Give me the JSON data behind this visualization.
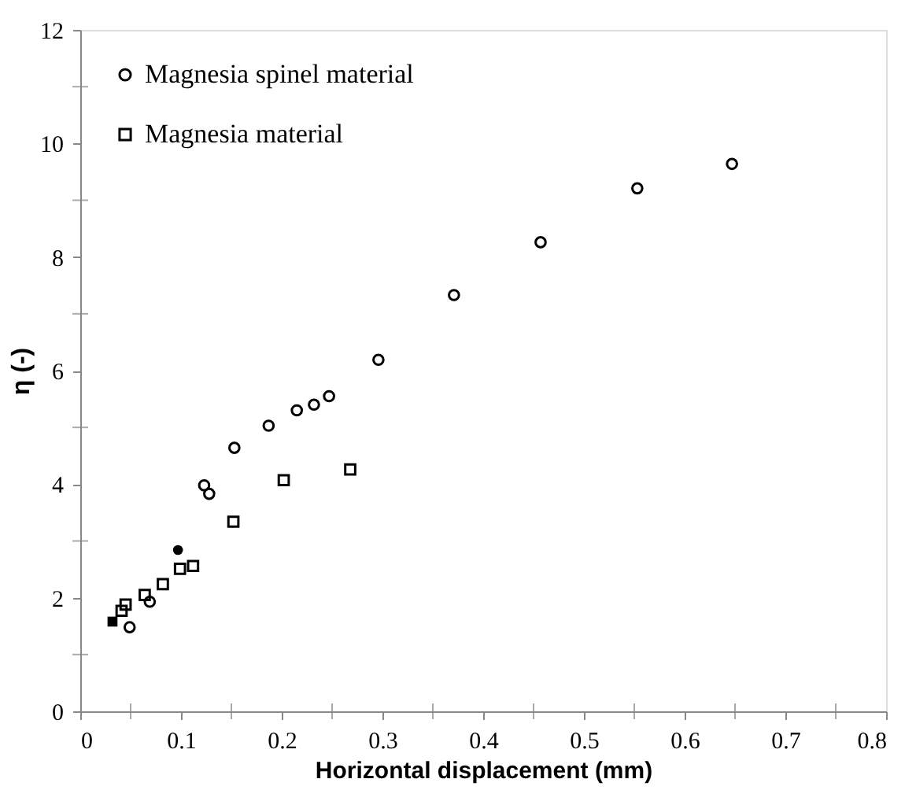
{
  "chart_data": {
    "type": "scatter",
    "xlabel": "Horizontal displacement (mm)",
    "ylabel": "η (-)",
    "xlim": [
      0,
      0.8
    ],
    "xticks": [
      0,
      {
        "value": 0.05,
        "label": null
      },
      0.1,
      {
        "value": 0.15,
        "label": null
      },
      0.2,
      {
        "value": 0.25,
        "label": null
      },
      0.3,
      {
        "value": 0.35,
        "label": null
      },
      0.4,
      {
        "value": 0.45,
        "label": null
      },
      0.5,
      {
        "value": 0.55,
        "label": null
      },
      0.6,
      {
        "value": 0.65,
        "label": null
      },
      0.7,
      {
        "value": 0.75,
        "label": null
      },
      0.8
    ],
    "ylim": [
      0,
      12
    ],
    "yticks": [
      0,
      {
        "value": 1,
        "label": null
      },
      2,
      {
        "value": 3,
        "label": null
      },
      4,
      {
        "value": 5,
        "label": null
      },
      6,
      {
        "value": 7,
        "label": null
      },
      8,
      {
        "value": 9,
        "label": null
      },
      10,
      {
        "value": 11,
        "label": null
      },
      12
    ],
    "grid": false,
    "legend": "top left",
    "series": [
      {
        "name": "Magnesia spinel material",
        "color": "#000000",
        "marker": "circle",
        "x": [
          0.049,
          0.069,
          0.123,
          0.128,
          0.153,
          0.187,
          0.215,
          0.232,
          0.247,
          0.296,
          0.371,
          0.457,
          0.553,
          0.647
        ],
        "values": [
          1.48,
          1.93,
          3.98,
          3.83,
          4.64,
          5.03,
          5.3,
          5.4,
          5.55,
          6.19,
          7.33,
          8.26,
          9.21,
          9.64
        ]
      },
      {
        "name": "Magnesia material",
        "color": "#000000",
        "marker": "square",
        "x": [
          0.041,
          0.045,
          0.064,
          0.082,
          0.099,
          0.112,
          0.152,
          0.202,
          0.268
        ],
        "values": [
          1.77,
          1.88,
          2.05,
          2.24,
          2.51,
          2.56,
          3.34,
          4.07,
          4.26
        ]
      },
      {
        "color": "#000000",
        "marker": "circle",
        "x": [
          0.097
        ],
        "values": [
          2.84
        ]
      },
      {
        "color": "#000000",
        "marker": "square",
        "x": [
          0.032
        ],
        "values": [
          1.58
        ]
      }
    ]
  }
}
